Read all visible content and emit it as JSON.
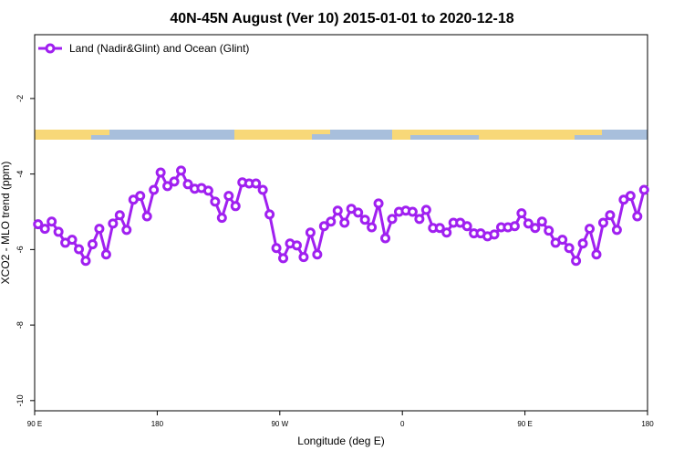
{
  "chart_data": {
    "type": "line",
    "title": "40N-45N August (Ver 10)   2015-01-01 to 2020-12-18",
    "x_label": "Longitude (deg E)",
    "y_label": "XCO2 - MLO trend (ppm)",
    "x": [
      92.5,
      97.5,
      102.5,
      107.5,
      112.5,
      117.5,
      122.5,
      127.5,
      132.5,
      137.5,
      142.5,
      147.5,
      152.5,
      157.5,
      162.5,
      167.5,
      172.5,
      177.5,
      182.5,
      187.5,
      192.5,
      197.5,
      202.5,
      207.5,
      212.5,
      217.5,
      222.5,
      227.5,
      232.5,
      237.5,
      242.5,
      247.5,
      252.5,
      257.5,
      262.5,
      267.5,
      272.5,
      277.5,
      282.5,
      287.5,
      292.5,
      297.5,
      302.5,
      307.5,
      312.5,
      317.5,
      322.5,
      327.5,
      332.5,
      337.5,
      342.5,
      347.5,
      352.5,
      357.5,
      362.5,
      367.5,
      372.5,
      377.5,
      382.5,
      387.5,
      392.5,
      397.5,
      402.5,
      407.5,
      412.5,
      417.5,
      422.5,
      427.5,
      432.5,
      437.5,
      442.5,
      447.5,
      452.5,
      457.5,
      462.5,
      467.5,
      472.5,
      477.5,
      482.5,
      487.5,
      492.5,
      497.5,
      502.5,
      507.5,
      512.5,
      517.5,
      522.5,
      527.5,
      532.5,
      537.5
    ],
    "series": [
      {
        "name": "Land (Nadir&Glint) and Ocean (Glint)",
        "color": "#a020f0",
        "values": [
          -5.33,
          -5.45,
          -5.26,
          -5.53,
          -5.82,
          -5.74,
          -5.99,
          -6.3,
          -5.86,
          -5.45,
          -6.13,
          -5.31,
          -5.09,
          -5.48,
          -4.68,
          -4.58,
          -5.12,
          -4.42,
          -3.96,
          -4.32,
          -4.2,
          -3.91,
          -4.27,
          -4.39,
          -4.37,
          -4.44,
          -4.73,
          -5.16,
          -4.58,
          -4.85,
          -4.22,
          -4.25,
          -4.25,
          -4.42,
          -5.07,
          -5.96,
          -6.23,
          -5.84,
          -5.89,
          -6.2,
          -5.55,
          -6.13,
          -5.38,
          -5.26,
          -4.97,
          -5.29,
          -4.92,
          -5.02,
          -5.21,
          -5.41,
          -4.78,
          -5.7,
          -5.19,
          -5.0,
          -4.97,
          -5.0,
          -5.19,
          -4.95,
          -5.43,
          -5.43,
          -5.55,
          -5.29,
          -5.29,
          -5.38,
          -5.57,
          -5.57,
          -5.65,
          -5.6,
          -5.41,
          -5.41,
          -5.38,
          -5.04,
          -5.31,
          -5.43,
          -5.26,
          -5.5,
          -5.82,
          -5.74,
          -5.96,
          -6.3,
          -5.84,
          -5.45,
          -6.13,
          -5.29,
          -5.09,
          -5.48,
          -4.68,
          -4.58,
          -5.12,
          -4.42
        ]
      }
    ],
    "xlim": [
      90,
      540
    ],
    "xticks": [
      {
        "value": 90,
        "label": "90 E"
      },
      180,
      {
        "value": 270,
        "label": "90 W"
      },
      {
        "value": 360,
        "label": "0"
      },
      {
        "value": 450,
        "label": "90 E"
      },
      {
        "value": 540,
        "label": "180"
      }
    ],
    "ylim": [
      -10.27,
      -0.31
    ],
    "yticks": [
      -2,
      -4,
      -6,
      -8,
      -10
    ],
    "legend": "top-left"
  }
}
